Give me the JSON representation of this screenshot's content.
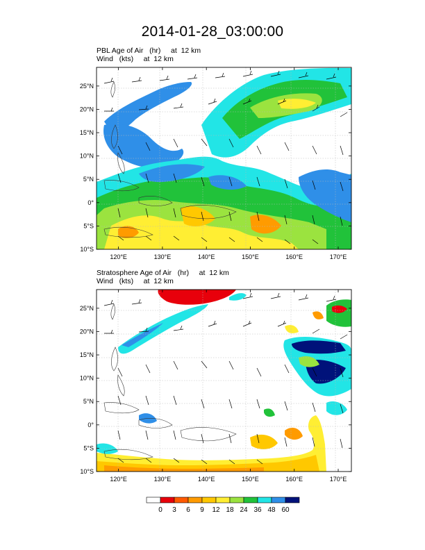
{
  "title": "2014-01-28_03:00:00",
  "panels": [
    {
      "name": "pbl",
      "label_line1": "PBL Age of Air   (hr)     at  12 km",
      "label_line2": "Wind   (kts)     at  12 km"
    },
    {
      "name": "stratosphere",
      "label_line1": "Stratosphere Age of Air   (hr)     at  12 km",
      "label_line2": "Wind   (kts)     at  12 km"
    }
  ],
  "map": {
    "lon_range": [
      115,
      173
    ],
    "lat_range": [
      -10,
      29
    ],
    "lon_ticks": [
      {
        "value": 120,
        "label": "120°E"
      },
      {
        "value": 130,
        "label": "130°E"
      },
      {
        "value": 140,
        "label": "140°E"
      },
      {
        "value": 150,
        "label": "150°E"
      },
      {
        "value": 160,
        "label": "160°E"
      },
      {
        "value": 170,
        "label": "170°E"
      }
    ],
    "lat_ticks": [
      {
        "value": 25,
        "label": "25°N"
      },
      {
        "value": 20,
        "label": "20°N"
      },
      {
        "value": 15,
        "label": "15°N"
      },
      {
        "value": 10,
        "label": "10°N"
      },
      {
        "value": 5,
        "label": "5°N"
      },
      {
        "value": 0,
        "label": "0°"
      },
      {
        "value": -5,
        "label": "5°S"
      },
      {
        "value": -10,
        "label": "10°S"
      }
    ]
  },
  "colorbar": {
    "labels": [
      "0",
      "3",
      "6",
      "9",
      "12",
      "18",
      "24",
      "36",
      "48",
      "60"
    ],
    "colors": [
      "#ffffff",
      "#e8000b",
      "#ff5a00",
      "#ff9b00",
      "#ffc800",
      "#ffee33",
      "#9be33f",
      "#21c23a",
      "#22e5e6",
      "#2f8fe8",
      "#00127a"
    ]
  }
}
